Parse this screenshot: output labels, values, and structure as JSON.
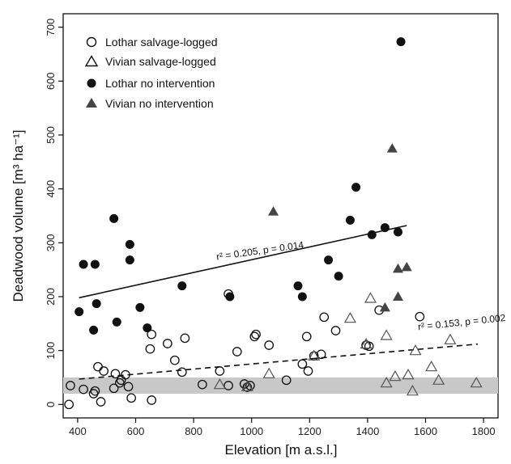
{
  "chart_data": {
    "type": "scatter",
    "xlabel": "Elevation [m a.s.l.]",
    "ylabel": "Deadwood volume [m³ ha⁻¹]",
    "xlim": [
      350,
      1850
    ],
    "ylim": [
      -25,
      725
    ],
    "xticks": [
      400,
      600,
      800,
      1000,
      1200,
      1400,
      1600,
      1800
    ],
    "yticks": [
      0,
      100,
      200,
      300,
      400,
      500,
      600,
      700
    ],
    "grid": false,
    "legend_position": "top-left",
    "band": {
      "ymin": 20,
      "ymax": 50,
      "color": "#c8c8c8"
    },
    "series": [
      {
        "name": "Lothar salvage-logged",
        "marker": "circle-open",
        "color": "#111111",
        "points": [
          [
            370,
            0
          ],
          [
            375,
            35
          ],
          [
            420,
            28
          ],
          [
            455,
            20
          ],
          [
            460,
            25
          ],
          [
            470,
            70
          ],
          [
            480,
            5
          ],
          [
            490,
            62
          ],
          [
            525,
            30
          ],
          [
            530,
            57
          ],
          [
            545,
            40
          ],
          [
            550,
            45
          ],
          [
            565,
            55
          ],
          [
            575,
            33
          ],
          [
            585,
            12
          ],
          [
            650,
            103
          ],
          [
            655,
            130
          ],
          [
            655,
            8
          ],
          [
            710,
            113
          ],
          [
            735,
            82
          ],
          [
            760,
            60
          ],
          [
            770,
            123
          ],
          [
            830,
            37
          ],
          [
            890,
            62
          ],
          [
            920,
            205
          ],
          [
            920,
            35
          ],
          [
            950,
            98
          ],
          [
            975,
            38
          ],
          [
            985,
            32
          ],
          [
            995,
            35
          ],
          [
            1010,
            126
          ],
          [
            1015,
            130
          ],
          [
            1060,
            110
          ],
          [
            1120,
            45
          ],
          [
            1175,
            75
          ],
          [
            1190,
            126
          ],
          [
            1195,
            62
          ],
          [
            1215,
            90
          ],
          [
            1240,
            93
          ],
          [
            1250,
            162
          ],
          [
            1290,
            137
          ],
          [
            1395,
            110
          ],
          [
            1405,
            108
          ],
          [
            1440,
            175
          ],
          [
            1580,
            163
          ]
        ]
      },
      {
        "name": "Vivian salvage-logged",
        "marker": "triangle-open",
        "color": "#111111",
        "points": [
          [
            890,
            37
          ],
          [
            985,
            33
          ],
          [
            1060,
            57
          ],
          [
            1215,
            90
          ],
          [
            1340,
            160
          ],
          [
            1395,
            112
          ],
          [
            1410,
            197
          ],
          [
            1465,
            128
          ],
          [
            1465,
            40
          ],
          [
            1495,
            52
          ],
          [
            1540,
            55
          ],
          [
            1555,
            25
          ],
          [
            1565,
            100
          ],
          [
            1620,
            70
          ],
          [
            1645,
            45
          ],
          [
            1685,
            120
          ],
          [
            1775,
            40
          ]
        ]
      },
      {
        "name": "Lothar no intervention",
        "marker": "circle-filled",
        "color": "#111111",
        "points": [
          [
            405,
            172
          ],
          [
            420,
            260
          ],
          [
            455,
            138
          ],
          [
            460,
            260
          ],
          [
            465,
            187
          ],
          [
            525,
            345
          ],
          [
            535,
            153
          ],
          [
            580,
            297
          ],
          [
            580,
            268
          ],
          [
            615,
            180
          ],
          [
            640,
            142
          ],
          [
            760,
            220
          ],
          [
            925,
            200
          ],
          [
            1160,
            220
          ],
          [
            1175,
            200
          ],
          [
            1265,
            268
          ],
          [
            1300,
            238
          ],
          [
            1340,
            342
          ],
          [
            1360,
            403
          ],
          [
            1415,
            315
          ],
          [
            1460,
            328
          ],
          [
            1505,
            320
          ],
          [
            1515,
            673
          ]
        ]
      },
      {
        "name": "Vivian no intervention",
        "marker": "triangle-filled",
        "color": "#444444",
        "points": [
          [
            1075,
            358
          ],
          [
            1460,
            180
          ],
          [
            1485,
            475
          ],
          [
            1505,
            252
          ],
          [
            1505,
            200
          ],
          [
            1535,
            255
          ]
        ]
      }
    ],
    "fits": [
      {
        "series": "Lothar no intervention",
        "style": "solid",
        "x": [
          405,
          1535
        ],
        "y": [
          198,
          332
        ],
        "label": "r² = 0.205, p = 0.014",
        "label_anchor": [
          880,
          268
        ],
        "label_rotate": -8
      },
      {
        "series": "Lothar salvage-logged",
        "style": "dashed",
        "x": [
          405,
          1780
        ],
        "y": [
          47,
          112
        ],
        "label": "r² = 0.153, p = 0.002",
        "label_anchor": [
          1575,
          138
        ],
        "label_rotate": -6
      }
    ]
  }
}
